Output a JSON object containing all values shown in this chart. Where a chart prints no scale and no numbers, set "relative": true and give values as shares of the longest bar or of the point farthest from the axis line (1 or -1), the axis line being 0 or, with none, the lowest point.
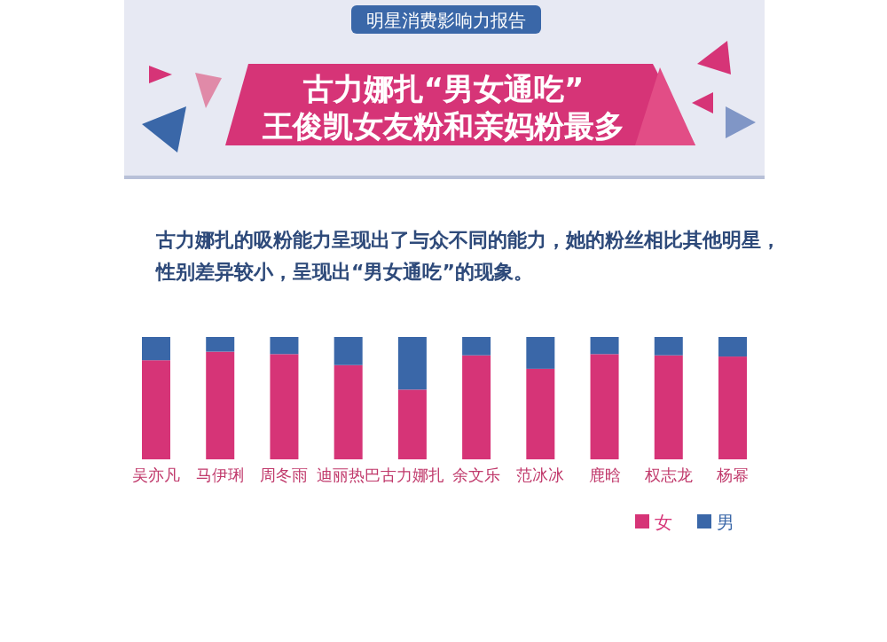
{
  "chart_data": {
    "type": "bar",
    "title": "古力娜扎“男女通吃”\n王俊凯女友粉和亲妈粉最多",
    "subtitle": "古力娜扎的吸粉能力呈现出了与众不同的能力，她的粉丝相比其他明星，性别差异较小，呈现出“男女通吃”的现象。",
    "annotations": [
      "明星消费影响力报告"
    ],
    "categories": [
      "吴亦凡",
      "马伊琍",
      "周冬雨",
      "迪丽热巴",
      "古力娜扎",
      "余文乐",
      "范冰冰",
      "鹿晗",
      "权志龙",
      "杨幂"
    ],
    "relative": true,
    "stacked": true,
    "legend": "bottom right",
    "series": [
      {
        "name": "女",
        "color": "#d63477",
        "values": [
          0.81,
          0.88,
          0.86,
          0.77,
          0.57,
          0.85,
          0.74,
          0.86,
          0.85,
          0.84
        ]
      },
      {
        "name": "男",
        "color": "#3a67a8",
        "values": [
          0.19,
          0.12,
          0.14,
          0.23,
          0.43,
          0.15,
          0.26,
          0.14,
          0.15,
          0.16
        ]
      }
    ]
  }
}
